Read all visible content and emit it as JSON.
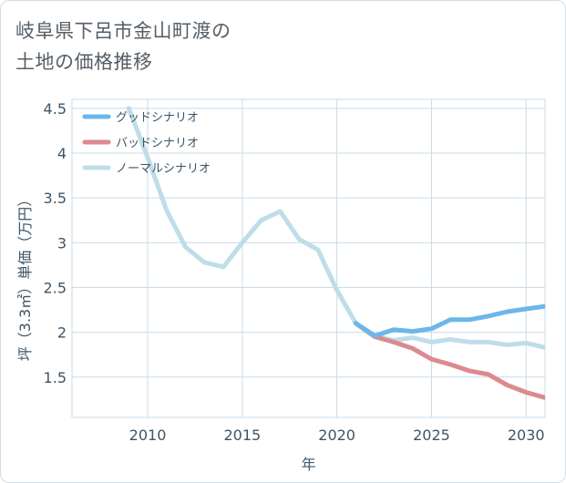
{
  "title_lines": [
    "岐阜県下呂市金山町渡の",
    "土地の価格推移"
  ],
  "colors": {
    "good": "#6cb6ea",
    "bad": "#dc8a8f",
    "normal": "#bfdde9",
    "grid": "#c9dbe6",
    "text": "#3d5566"
  },
  "chart_data": {
    "type": "line",
    "title": "岐阜県下呂市金山町渡の土地の価格推移",
    "xlabel": "年",
    "ylabel": "坪（3.3㎡）単価（万円）",
    "xlim": [
      2006,
      2031
    ],
    "ylim": [
      1.05,
      4.6
    ],
    "x_ticks": [
      2010,
      2015,
      2020,
      2025,
      2030
    ],
    "x_tick_labels": [
      "2010",
      "2015",
      "2020",
      "2025",
      "2030"
    ],
    "y_ticks": [
      1.5,
      2,
      2.5,
      3,
      3.5,
      4,
      4.5
    ],
    "y_tick_labels": [
      "1.5",
      "2",
      "2.5",
      "3",
      "3.5",
      "4",
      "4.5"
    ],
    "grid": true,
    "legend_position": "top-left",
    "series": [
      {
        "name": "グッドシナリオ",
        "color_key": "good",
        "x": [
          2021,
          2022,
          2023,
          2024,
          2025,
          2026,
          2027,
          2028,
          2029,
          2030,
          2031
        ],
        "y": [
          2.1,
          1.96,
          2.03,
          2.01,
          2.04,
          2.14,
          2.14,
          2.18,
          2.23,
          2.26,
          2.29
        ]
      },
      {
        "name": "バッドシナリオ",
        "color_key": "bad",
        "x": [
          2021,
          2022,
          2023,
          2024,
          2025,
          2026,
          2027,
          2028,
          2029,
          2030,
          2031
        ],
        "y": [
          2.1,
          1.95,
          1.89,
          1.82,
          1.7,
          1.64,
          1.57,
          1.53,
          1.41,
          1.33,
          1.27
        ]
      },
      {
        "name": "ノーマルシナリオ",
        "color_key": "normal",
        "x": [
          2009,
          2010,
          2011,
          2012,
          2013,
          2014,
          2015,
          2016,
          2017,
          2018,
          2019,
          2020,
          2021,
          2022,
          2023,
          2024,
          2025,
          2026,
          2027,
          2028,
          2029,
          2030,
          2031
        ],
        "y": [
          4.5,
          3.95,
          3.36,
          2.95,
          2.78,
          2.73,
          3.0,
          3.25,
          3.35,
          3.04,
          2.92,
          2.47,
          2.1,
          1.96,
          1.91,
          1.94,
          1.89,
          1.92,
          1.89,
          1.89,
          1.86,
          1.88,
          1.83
        ]
      }
    ]
  }
}
